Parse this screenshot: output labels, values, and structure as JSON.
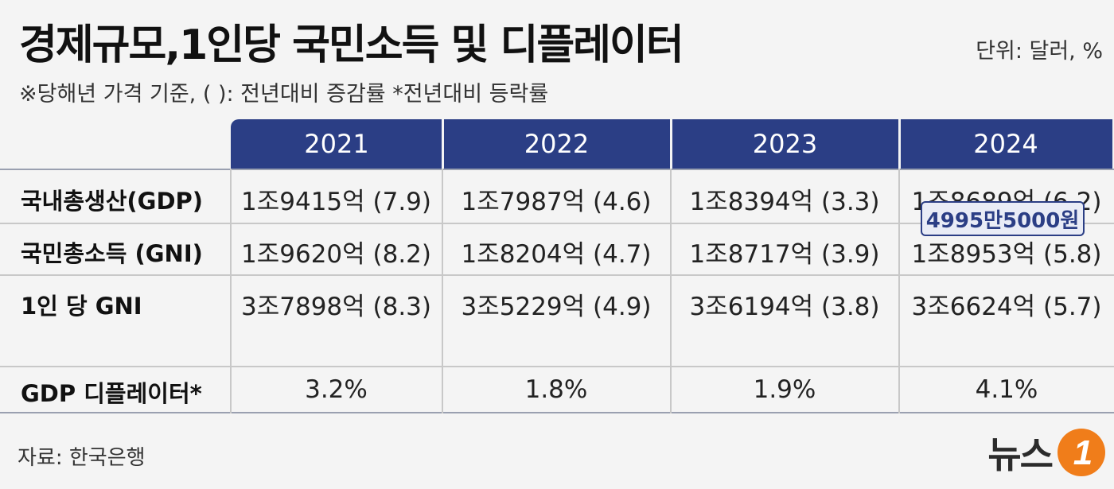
{
  "title": "경제규모,1인당 국민소득 및 디플레이터",
  "unit": "단위: 달러, %",
  "subtitle": "※당해년 가격 기준, ( ): 전년대비 증감률    *전년대비 등락률",
  "chart_data": {
    "type": "table",
    "columns": [
      "2021",
      "2022",
      "2023",
      "2024"
    ],
    "rows": [
      {
        "label": "국내총생산(GDP)",
        "cells": [
          "1조9415억 (7.9)",
          "1조7987억 (4.6)",
          "1조8394억  (3.3)",
          "1조8689억  (6.2)"
        ]
      },
      {
        "label": "국민총소득 (GNI)",
        "cells": [
          "1조9620억 (8.2)",
          "1조8204억 (4.7)",
          "1조8717억  (3.9)",
          "1조8953억  (5.8)"
        ]
      },
      {
        "label": "1인 당 GNI",
        "cells": [
          "3조7898억 (8.3)",
          "3조5229억 (4.9)",
          "3조6194억 (3.8)",
          "3조6624억  (5.7)"
        ]
      },
      {
        "label": "GDP 디플레이터*",
        "cells": [
          "3.2%",
          "1.8%",
          "1.9%",
          "4.1%"
        ]
      }
    ],
    "note_2024_gni_per_capita": "4995만5000원"
  },
  "source": "자료: 한국은행",
  "logo": {
    "text": "뉴스",
    "mark": "1",
    "accent": "#f07d1a"
  },
  "colors": {
    "header_bg": "#2b3e85",
    "background": "#f4f4f4"
  }
}
